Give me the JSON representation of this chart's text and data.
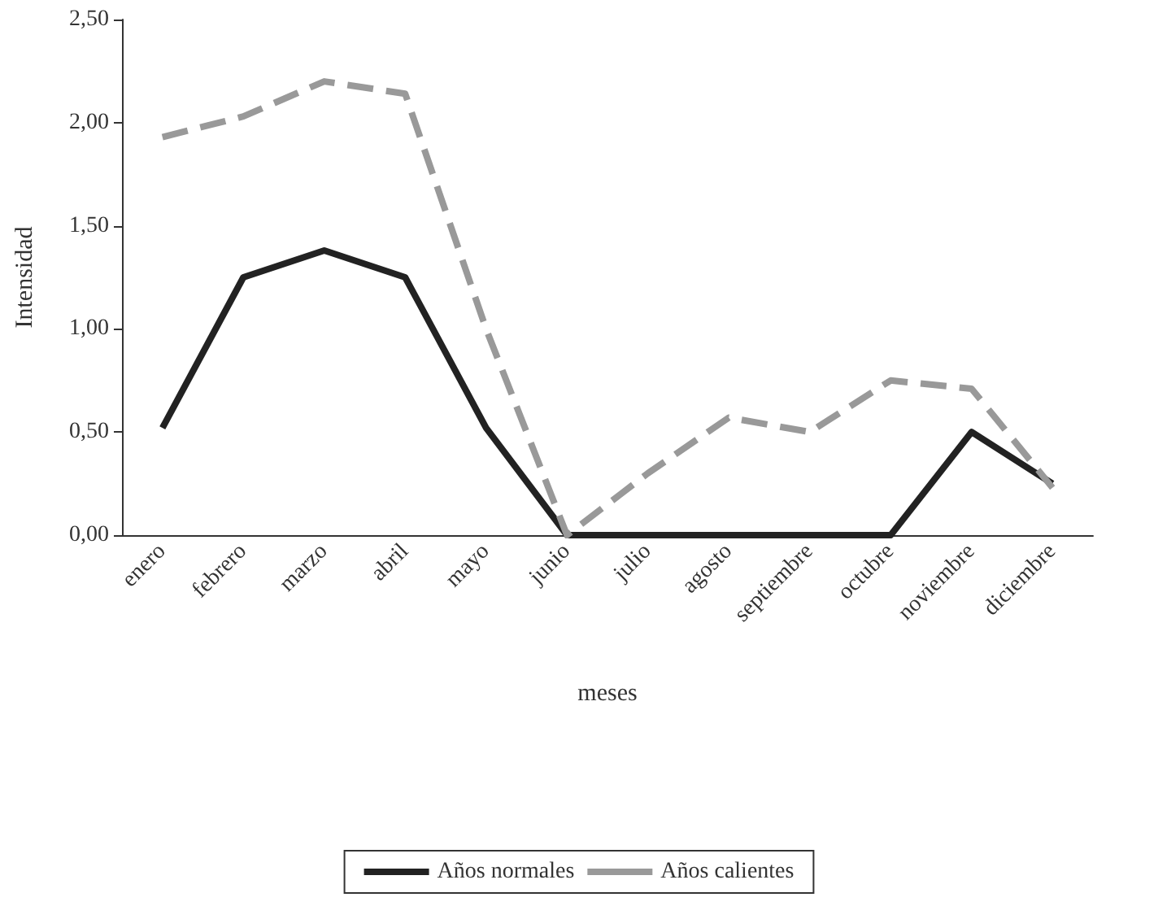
{
  "chart_data": {
    "type": "line",
    "xlabel": "meses",
    "ylabel": "Intensidad",
    "categories": [
      "enero",
      "febrero",
      "marzo",
      "abril",
      "mayo",
      "junio",
      "julio",
      "agosto",
      "septiembre",
      "octubre",
      "noviembre",
      "diciembre"
    ],
    "series": [
      {
        "name": "Años normales",
        "color": "#222222",
        "line_style": "solid",
        "values": [
          0.52,
          1.25,
          1.38,
          1.25,
          0.52,
          0,
          0,
          0,
          0,
          0,
          0.5,
          0.25
        ]
      },
      {
        "name": "Años calientes",
        "color": "#999999",
        "line_style": "dashed",
        "values": [
          1.93,
          2.03,
          2.2,
          2.14,
          1.0,
          0,
          0.3,
          0.57,
          0.5,
          0.75,
          0.71,
          0.23
        ]
      }
    ],
    "ylim": [
      0,
      2.5
    ],
    "yticks": [
      {
        "value": 0,
        "label": "0,00"
      },
      {
        "value": 0.5,
        "label": "0,50"
      },
      {
        "value": 1,
        "label": "1,00"
      },
      {
        "value": 1.5,
        "label": "1,50"
      },
      {
        "value": 2,
        "label": "2,00"
      },
      {
        "value": 2.5,
        "label": "2,50"
      }
    ],
    "grid": false,
    "legend": "bottom"
  }
}
